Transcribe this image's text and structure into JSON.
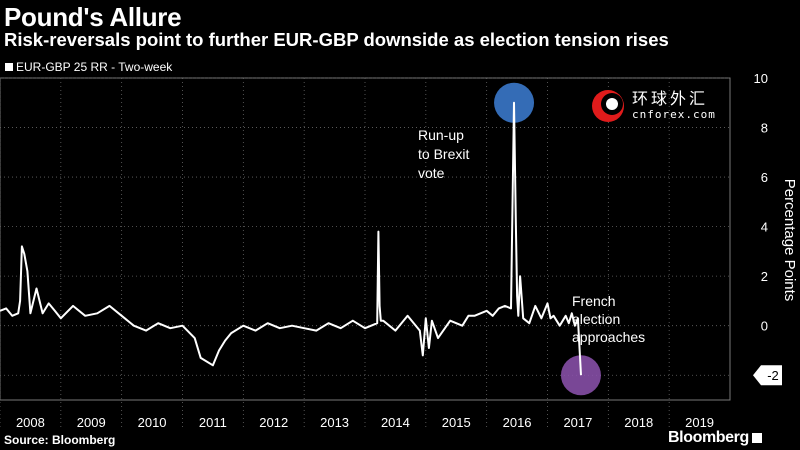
{
  "chart_data": {
    "type": "line",
    "title": "Pound's Allure",
    "subtitle": "Risk-reversals point to further EUR-GBP downside as election tension rises",
    "legend": [
      "EUR-GBP 25 RR - Two-week"
    ],
    "ylabel": "Percentage Points",
    "ylim": [
      -3,
      10
    ],
    "yticks": [
      10,
      8,
      6,
      4,
      2,
      0,
      -2
    ],
    "last_value_label": "-2",
    "x_years": [
      "2008",
      "2009",
      "2010",
      "2011",
      "2012",
      "2013",
      "2014",
      "2015",
      "2016",
      "2017",
      "2018",
      "2019"
    ],
    "xlim": [
      2008,
      2020
    ],
    "series": [
      {
        "name": "EUR-GBP 25 RR - Two-week",
        "x": [
          2008.0,
          2008.1,
          2008.2,
          2008.3,
          2008.33,
          2008.36,
          2008.4,
          2008.45,
          2008.5,
          2008.6,
          2008.7,
          2008.8,
          2008.9,
          2009.0,
          2009.2,
          2009.4,
          2009.6,
          2009.8,
          2010.0,
          2010.2,
          2010.4,
          2010.6,
          2010.8,
          2011.0,
          2011.2,
          2011.3,
          2011.5,
          2011.6,
          2011.7,
          2011.8,
          2012.0,
          2012.2,
          2012.4,
          2012.6,
          2012.8,
          2013.0,
          2013.2,
          2013.4,
          2013.6,
          2013.8,
          2014.0,
          2014.2,
          2014.22,
          2014.24,
          2014.26,
          2014.3,
          2014.5,
          2014.7,
          2014.9,
          2014.95,
          2015.0,
          2015.05,
          2015.1,
          2015.2,
          2015.4,
          2015.6,
          2015.7,
          2015.8,
          2016.0,
          2016.1,
          2016.2,
          2016.3,
          2016.4,
          2016.45,
          2016.48,
          2016.5,
          2016.52,
          2016.55,
          2016.6,
          2016.7,
          2016.8,
          2016.9,
          2017.0,
          2017.05,
          2017.1,
          2017.2,
          2017.3,
          2017.35,
          2017.4,
          2017.45,
          2017.5,
          2017.55
        ],
        "values": [
          0.6,
          0.7,
          0.4,
          0.5,
          1.0,
          3.2,
          2.9,
          2.2,
          0.5,
          1.5,
          0.5,
          0.9,
          0.6,
          0.3,
          0.8,
          0.4,
          0.5,
          0.8,
          0.4,
          0.0,
          -0.2,
          0.1,
          -0.1,
          0.0,
          -0.5,
          -1.3,
          -1.6,
          -1.0,
          -0.6,
          -0.3,
          0.0,
          -0.2,
          0.1,
          -0.1,
          0.0,
          -0.1,
          -0.2,
          0.1,
          -0.1,
          0.2,
          -0.1,
          0.1,
          3.8,
          0.8,
          0.2,
          0.2,
          -0.2,
          0.4,
          -0.2,
          -1.2,
          0.3,
          -0.9,
          0.2,
          -0.5,
          0.2,
          0.0,
          0.4,
          0.4,
          0.6,
          0.4,
          0.7,
          0.8,
          0.7,
          9.0,
          4.0,
          1.2,
          0.4,
          2.0,
          0.3,
          0.1,
          0.8,
          0.3,
          0.9,
          0.3,
          0.4,
          0.0,
          0.4,
          0.1,
          0.5,
          0.0,
          0.3,
          -2.0
        ]
      }
    ],
    "annotations": [
      {
        "lines": [
          "Run-up",
          "to Brexit",
          "vote"
        ],
        "at_x": 2016.45,
        "at_y": 9.0
      },
      {
        "lines": [
          "French",
          "election",
          "approaches"
        ],
        "at_x": 2017.55,
        "at_y": -2.0
      }
    ],
    "highlight_color_1": "#3d7fd6",
    "highlight_color_2": "#8e53b0",
    "grid": true
  },
  "source": "Source: Bloomberg",
  "brand": "Bloomberg",
  "watermark": {
    "cn": "环球外汇",
    "en": "cnforex.com"
  }
}
